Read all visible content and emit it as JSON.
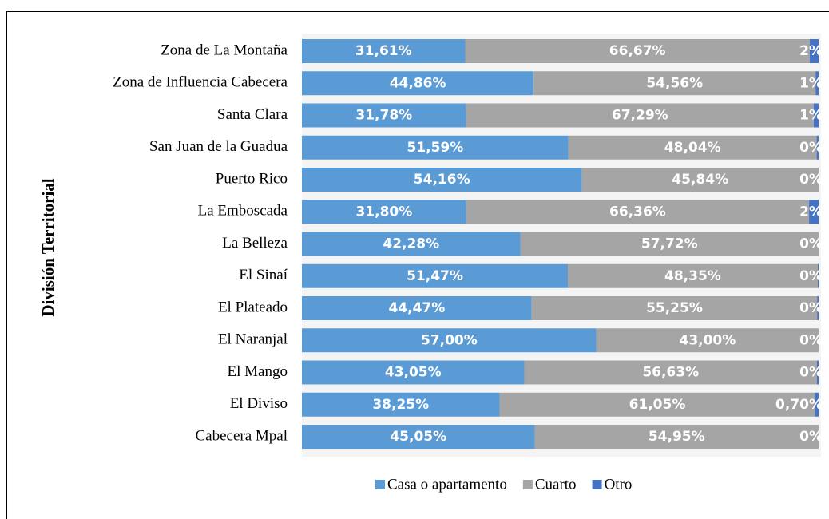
{
  "chart_data": {
    "type": "stacked-bar-horizontal",
    "y_axis_label": "División Territorial",
    "categories": [
      "Zona de La Montaña",
      "Zona de Influencia Cabecera",
      "Santa Clara",
      "San Juan de la Guadua",
      "Puerto Rico",
      "La Emboscada",
      "La Belleza",
      "El Sinaí",
      "El Plateado",
      "El Naranjal",
      "El Mango",
      "El Diviso",
      "Cabecera Mpal"
    ],
    "xlim": [
      0,
      100
    ],
    "series": [
      {
        "name": "Casa o apartamento",
        "color": "#5b9bd5",
        "values": [
          31.61,
          44.86,
          31.78,
          51.59,
          54.16,
          31.8,
          42.28,
          51.47,
          44.47,
          57.0,
          43.05,
          38.25,
          45.05
        ],
        "value_labels": [
          "31,61%",
          "44,86%",
          "31,78%",
          "51,59%",
          "54,16%",
          "31,80%",
          "42,28%",
          "51,47%",
          "44,47%",
          "57,00%",
          "43,05%",
          "38,25%",
          "45,05%"
        ]
      },
      {
        "name": "Cuarto",
        "color": "#a5a5a5",
        "values": [
          66.67,
          54.56,
          67.29,
          48.04,
          45.84,
          66.36,
          57.72,
          48.35,
          55.25,
          43.0,
          56.63,
          61.05,
          54.95
        ],
        "value_labels": [
          "66,67%",
          "54,56%",
          "67,29%",
          "48,04%",
          "45,84%",
          "66,36%",
          "57,72%",
          "48,35%",
          "55,25%",
          "43,00%",
          "56,63%",
          "61,05%",
          "54,95%"
        ]
      },
      {
        "name": "Otro",
        "color": "#4472c4",
        "values": [
          1.72,
          0.58,
          0.93,
          0.37,
          0,
          1.84,
          0,
          0.18,
          0.28,
          0,
          0.32,
          0.7,
          0
        ],
        "value_labels": [
          "2%",
          "1%",
          "1%",
          "0%",
          "0%",
          "2%",
          "0%",
          "0%",
          "0%",
          "0%",
          "0%",
          "0,70%",
          "0%"
        ]
      }
    ]
  }
}
